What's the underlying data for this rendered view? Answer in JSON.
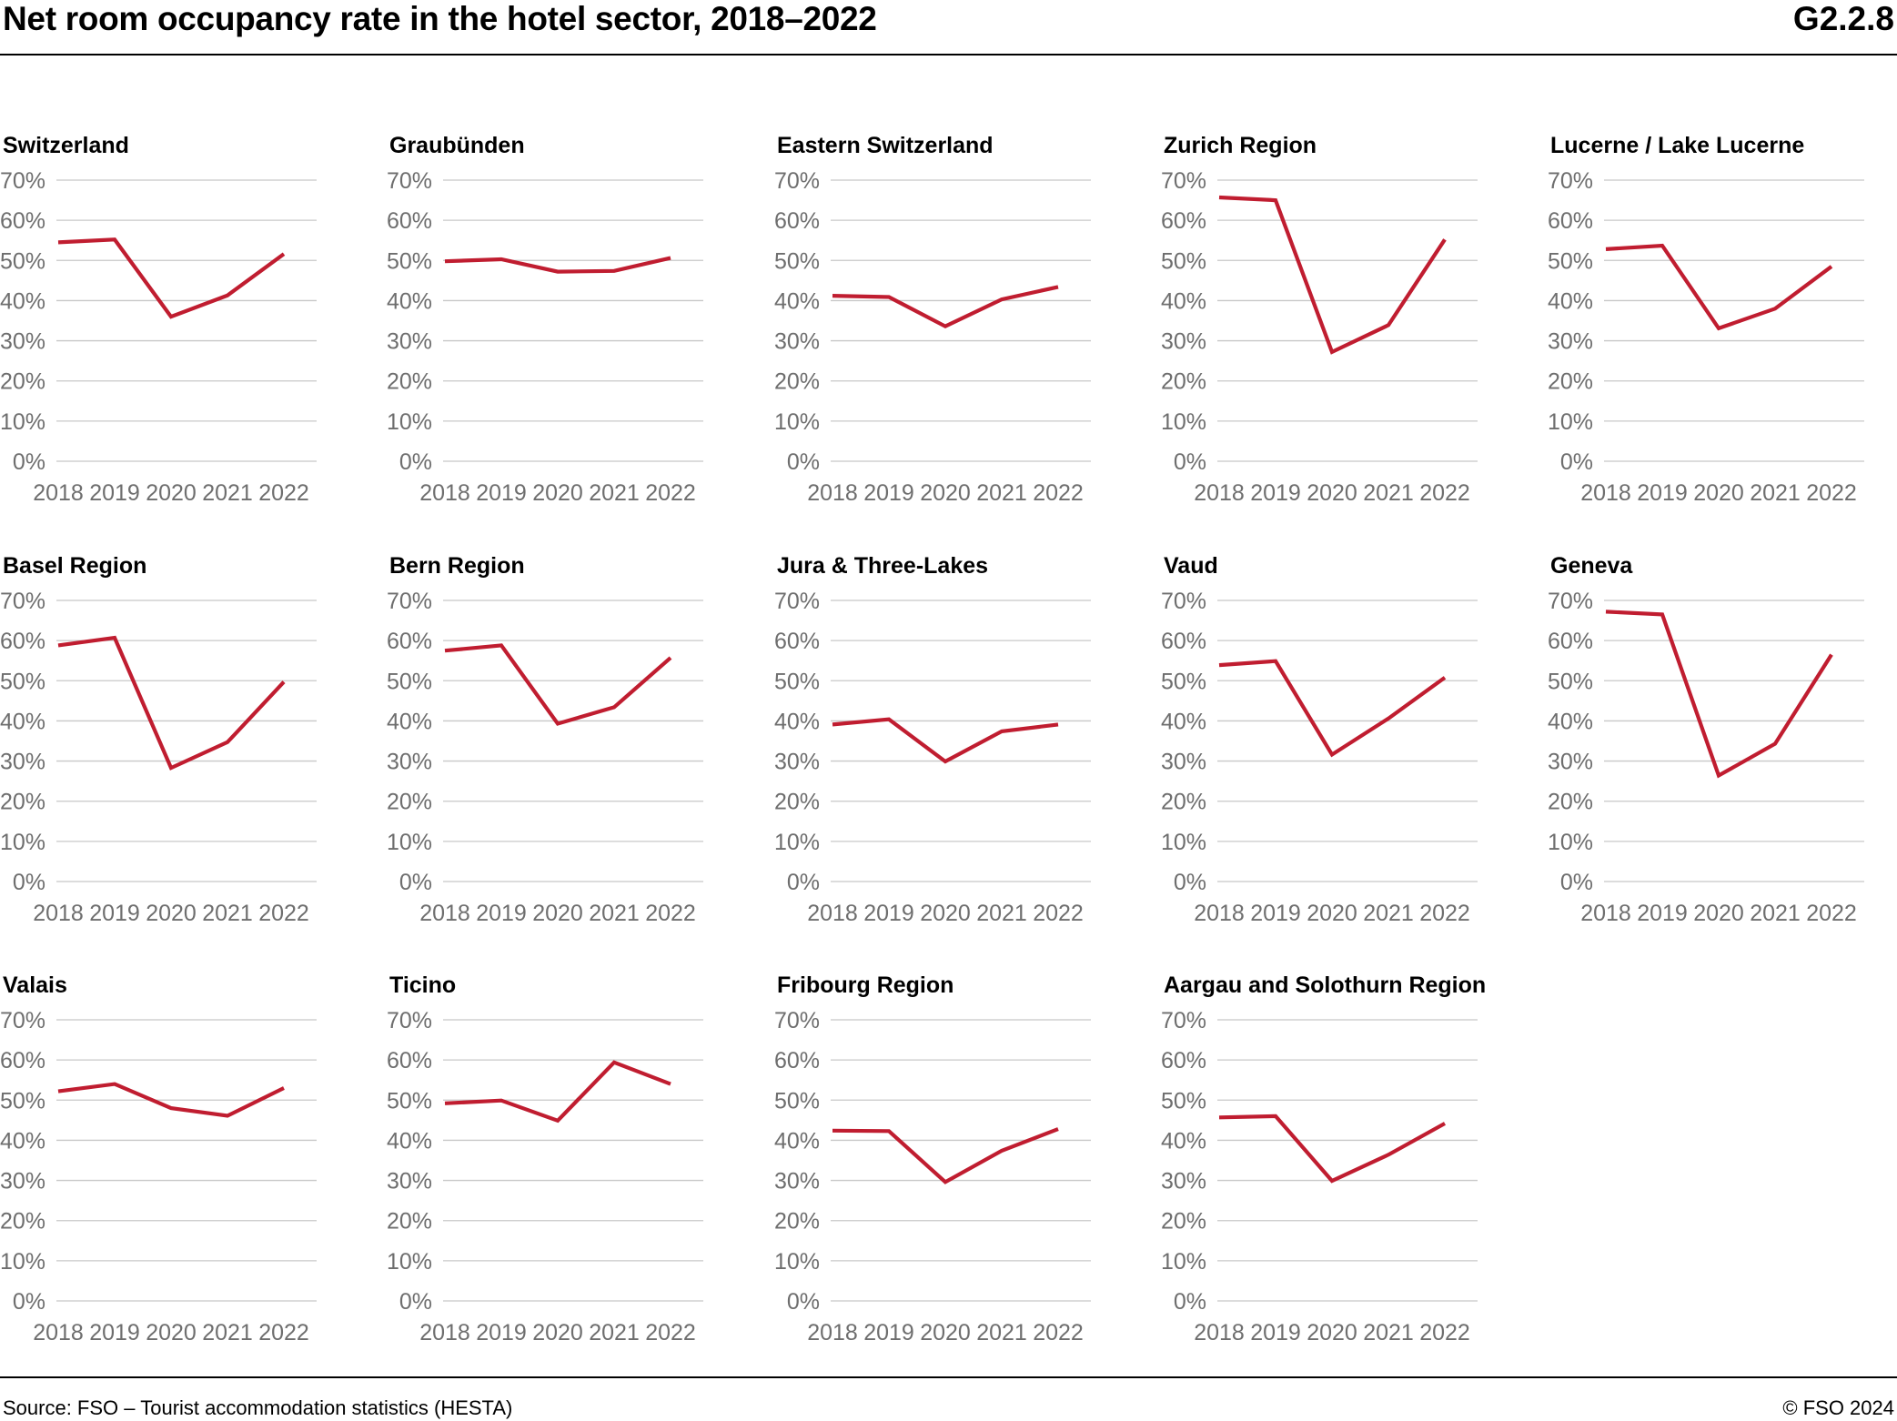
{
  "header": {
    "title": "Net room occupancy rate in the hotel sector, 2018–2022",
    "code": "G2.2.8"
  },
  "footer": {
    "source": "Source: FSO – Tourist accommodation statistics (HESTA)",
    "copyright": "© FSO 2024"
  },
  "colors": {
    "series": "#c01d30",
    "grid": "#c8c8c8",
    "tick_text": "#6e6e6e"
  },
  "chart_data": [
    {
      "type": "line",
      "title": "Switzerland",
      "x": [
        "2018",
        "2019",
        "2020",
        "2021",
        "2022"
      ],
      "values": [
        54.5,
        55.2,
        36.0,
        41.3,
        51.6
      ],
      "ylim": [
        0,
        70
      ],
      "yticks": [
        "0%",
        "10%",
        "20%",
        "30%",
        "40%",
        "50%",
        "60%",
        "70%"
      ],
      "grid": true
    },
    {
      "type": "line",
      "title": "Graubünden",
      "x": [
        "2018",
        "2019",
        "2020",
        "2021",
        "2022"
      ],
      "values": [
        49.8,
        50.3,
        47.2,
        47.4,
        50.6
      ],
      "ylim": [
        0,
        70
      ],
      "yticks": [
        "0%",
        "10%",
        "20%",
        "30%",
        "40%",
        "50%",
        "60%",
        "70%"
      ],
      "grid": true
    },
    {
      "type": "line",
      "title": "Eastern Switzerland",
      "x": [
        "2018",
        "2019",
        "2020",
        "2021",
        "2022"
      ],
      "values": [
        41.2,
        40.9,
        33.6,
        40.3,
        43.4
      ],
      "ylim": [
        0,
        70
      ],
      "yticks": [
        "0%",
        "10%",
        "20%",
        "30%",
        "40%",
        "50%",
        "60%",
        "70%"
      ],
      "grid": true
    },
    {
      "type": "line",
      "title": "Zurich Region",
      "x": [
        "2018",
        "2019",
        "2020",
        "2021",
        "2022"
      ],
      "values": [
        65.7,
        65.0,
        27.2,
        33.9,
        55.2
      ],
      "ylim": [
        0,
        70
      ],
      "yticks": [
        "0%",
        "10%",
        "20%",
        "30%",
        "40%",
        "50%",
        "60%",
        "70%"
      ],
      "grid": true
    },
    {
      "type": "line",
      "title": "Lucerne / Lake Lucerne",
      "x": [
        "2018",
        "2019",
        "2020",
        "2021",
        "2022"
      ],
      "values": [
        52.8,
        53.7,
        33.1,
        38.0,
        48.5
      ],
      "ylim": [
        0,
        70
      ],
      "yticks": [
        "0%",
        "10%",
        "20%",
        "30%",
        "40%",
        "50%",
        "60%",
        "70%"
      ],
      "grid": true
    },
    {
      "type": "line",
      "title": "Basel Region",
      "x": [
        "2018",
        "2019",
        "2020",
        "2021",
        "2022"
      ],
      "values": [
        58.8,
        60.7,
        28.3,
        34.7,
        49.7
      ],
      "ylim": [
        0,
        70
      ],
      "yticks": [
        "0%",
        "10%",
        "20%",
        "30%",
        "40%",
        "50%",
        "60%",
        "70%"
      ],
      "grid": true
    },
    {
      "type": "line",
      "title": "Bern Region",
      "x": [
        "2018",
        "2019",
        "2020",
        "2021",
        "2022"
      ],
      "values": [
        57.5,
        58.8,
        39.3,
        43.4,
        55.7
      ],
      "ylim": [
        0,
        70
      ],
      "yticks": [
        "0%",
        "10%",
        "20%",
        "30%",
        "40%",
        "50%",
        "60%",
        "70%"
      ],
      "grid": true
    },
    {
      "type": "line",
      "title": "Jura & Three-Lakes",
      "x": [
        "2018",
        "2019",
        "2020",
        "2021",
        "2022"
      ],
      "values": [
        39.1,
        40.4,
        29.9,
        37.4,
        39.1
      ],
      "ylim": [
        0,
        70
      ],
      "yticks": [
        "0%",
        "10%",
        "20%",
        "30%",
        "40%",
        "50%",
        "60%",
        "70%"
      ],
      "grid": true
    },
    {
      "type": "line",
      "title": "Vaud",
      "x": [
        "2018",
        "2019",
        "2020",
        "2021",
        "2022"
      ],
      "values": [
        53.9,
        54.9,
        31.6,
        40.6,
        50.8
      ],
      "ylim": [
        0,
        70
      ],
      "yticks": [
        "0%",
        "10%",
        "20%",
        "30%",
        "40%",
        "50%",
        "60%",
        "70%"
      ],
      "grid": true
    },
    {
      "type": "line",
      "title": "Geneva",
      "x": [
        "2018",
        "2019",
        "2020",
        "2021",
        "2022"
      ],
      "values": [
        67.2,
        66.5,
        26.4,
        34.3,
        56.5
      ],
      "ylim": [
        0,
        70
      ],
      "yticks": [
        "0%",
        "10%",
        "20%",
        "30%",
        "40%",
        "50%",
        "60%",
        "70%"
      ],
      "grid": true
    },
    {
      "type": "line",
      "title": "Valais",
      "x": [
        "2018",
        "2019",
        "2020",
        "2021",
        "2022"
      ],
      "values": [
        52.2,
        54.0,
        48.0,
        46.1,
        53.0
      ],
      "ylim": [
        0,
        70
      ],
      "yticks": [
        "0%",
        "10%",
        "20%",
        "30%",
        "40%",
        "50%",
        "60%",
        "70%"
      ],
      "grid": true
    },
    {
      "type": "line",
      "title": "Ticino",
      "x": [
        "2018",
        "2019",
        "2020",
        "2021",
        "2022"
      ],
      "values": [
        49.2,
        49.9,
        44.9,
        59.4,
        54.0
      ],
      "ylim": [
        0,
        70
      ],
      "yticks": [
        "0%",
        "10%",
        "20%",
        "30%",
        "40%",
        "50%",
        "60%",
        "70%"
      ],
      "grid": true
    },
    {
      "type": "line",
      "title": "Fribourg Region",
      "x": [
        "2018",
        "2019",
        "2020",
        "2021",
        "2022"
      ],
      "values": [
        42.4,
        42.3,
        29.6,
        37.4,
        42.8
      ],
      "ylim": [
        0,
        70
      ],
      "yticks": [
        "0%",
        "10%",
        "20%",
        "30%",
        "40%",
        "50%",
        "60%",
        "70%"
      ],
      "grid": true
    },
    {
      "type": "line",
      "title": "Aargau and Solothurn Region",
      "x": [
        "2018",
        "2019",
        "2020",
        "2021",
        "2022"
      ],
      "values": [
        45.7,
        46.0,
        29.9,
        36.4,
        44.2
      ],
      "ylim": [
        0,
        70
      ],
      "yticks": [
        "0%",
        "10%",
        "20%",
        "30%",
        "40%",
        "50%",
        "60%",
        "70%"
      ],
      "grid": true
    }
  ]
}
